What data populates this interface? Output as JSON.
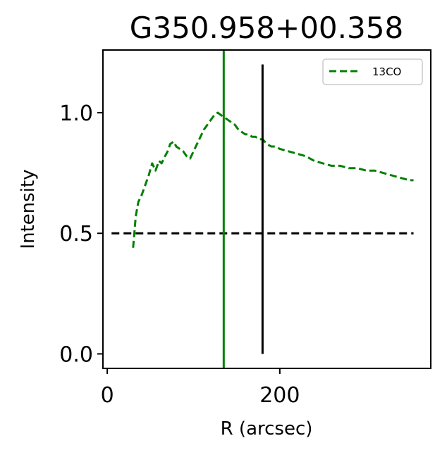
{
  "chart_data": {
    "type": "line",
    "title": "G350.958+00.358",
    "xlabel": "R (arcsec)",
    "ylabel": "Intensity",
    "xlim": [
      -5,
      375
    ],
    "ylim": [
      -0.06,
      1.26
    ],
    "xticks": [
      0,
      200
    ],
    "xtick_labels": [
      "0",
      "200"
    ],
    "yticks": [
      0.0,
      0.5,
      1.0
    ],
    "ytick_labels": [
      "0.0",
      "0.5",
      "1.0"
    ],
    "grid": false,
    "legend": {
      "position": "top-right",
      "entries": [
        "13CO"
      ]
    },
    "series": [
      {
        "name": "13CO",
        "color": "#008000",
        "style": "dashed",
        "x": [
          30,
          33,
          36,
          40,
          44,
          48,
          52,
          56,
          60,
          63,
          67,
          70,
          73,
          77,
          80,
          84,
          88,
          92,
          96,
          100,
          104,
          108,
          112,
          116,
          120,
          124,
          128,
          132,
          136,
          140,
          144,
          148,
          152,
          156,
          160,
          164,
          168,
          172,
          176,
          180,
          185,
          190,
          195,
          200,
          210,
          220,
          230,
          240,
          250,
          260,
          270,
          280,
          290,
          300,
          310,
          320,
          330,
          340,
          350,
          355
        ],
        "y": [
          0.44,
          0.57,
          0.63,
          0.66,
          0.7,
          0.74,
          0.79,
          0.76,
          0.8,
          0.79,
          0.82,
          0.84,
          0.87,
          0.88,
          0.86,
          0.85,
          0.84,
          0.82,
          0.81,
          0.84,
          0.87,
          0.9,
          0.93,
          0.95,
          0.97,
          0.99,
          1.0,
          0.99,
          0.98,
          0.97,
          0.96,
          0.95,
          0.93,
          0.92,
          0.91,
          0.91,
          0.9,
          0.9,
          0.89,
          0.89,
          0.87,
          0.86,
          0.86,
          0.85,
          0.84,
          0.83,
          0.82,
          0.8,
          0.79,
          0.78,
          0.78,
          0.77,
          0.77,
          0.76,
          0.76,
          0.75,
          0.74,
          0.73,
          0.72,
          0.72
        ]
      }
    ],
    "reference_lines": [
      {
        "kind": "horizontal",
        "y": 0.5,
        "x_range": [
          5,
          355
        ],
        "color": "#000000",
        "style": "dashed"
      },
      {
        "kind": "vertical",
        "x": 135,
        "color": "#008000",
        "style": "solid",
        "full_height": true
      },
      {
        "kind": "vertical",
        "x": 180,
        "y_range": [
          0.0,
          1.2
        ],
        "color": "#000000",
        "style": "solid"
      }
    ]
  }
}
